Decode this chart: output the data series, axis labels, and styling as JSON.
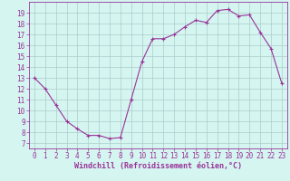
{
  "x": [
    0,
    1,
    2,
    3,
    4,
    5,
    6,
    7,
    8,
    9,
    10,
    11,
    12,
    13,
    14,
    15,
    16,
    17,
    18,
    19,
    20,
    21,
    22,
    23
  ],
  "y": [
    13.0,
    12.0,
    10.5,
    9.0,
    8.3,
    7.7,
    7.7,
    7.4,
    7.5,
    11.0,
    14.5,
    16.6,
    16.6,
    17.0,
    17.7,
    18.3,
    18.1,
    19.2,
    19.3,
    18.7,
    18.8,
    17.2,
    15.7,
    12.5
  ],
  "line_color": "#993399",
  "marker": "+",
  "marker_size": 3,
  "marker_color": "#993399",
  "bg_color": "#d5f5f0",
  "grid_color": "#aacccc",
  "xlabel": "Windchill (Refroidissement éolien,°C)",
  "xlabel_fontsize": 6,
  "tick_fontsize": 5.5,
  "xlim": [
    -0.5,
    23.5
  ],
  "ylim": [
    6.5,
    20.0
  ],
  "yticks": [
    7,
    8,
    9,
    10,
    11,
    12,
    13,
    14,
    15,
    16,
    17,
    18,
    19
  ],
  "xticks": [
    0,
    1,
    2,
    3,
    4,
    5,
    6,
    7,
    8,
    9,
    10,
    11,
    12,
    13,
    14,
    15,
    16,
    17,
    18,
    19,
    20,
    21,
    22,
    23
  ]
}
